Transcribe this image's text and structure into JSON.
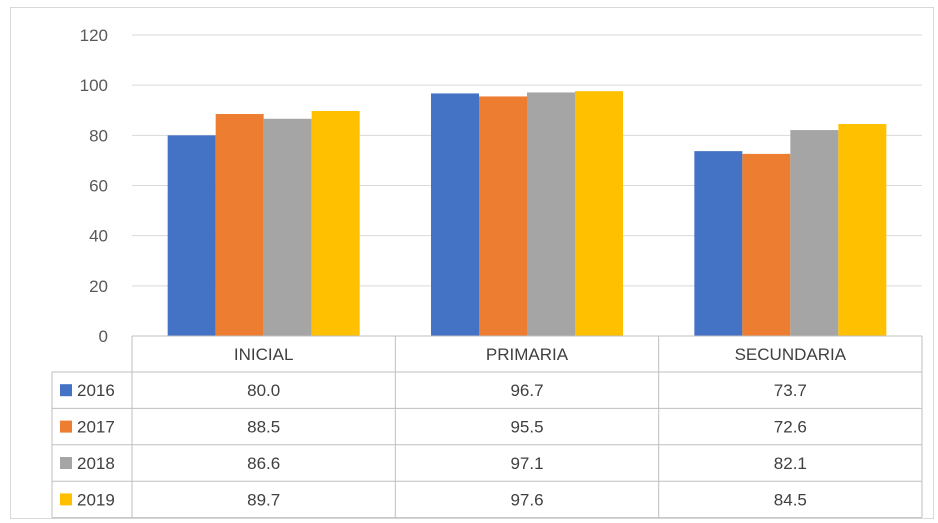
{
  "chart_data": {
    "type": "bar",
    "categories": [
      "INICIAL",
      "PRIMARIA",
      "SECUNDARIA"
    ],
    "series": [
      {
        "name": "2016",
        "color": "#4472C4",
        "values": [
          80.0,
          96.7,
          73.7
        ],
        "labels": [
          "80.0",
          "96.7",
          "73.7"
        ]
      },
      {
        "name": "2017",
        "color": "#ED7D31",
        "values": [
          88.5,
          95.5,
          72.6
        ],
        "labels": [
          "88.5",
          "95.5",
          "72.6"
        ]
      },
      {
        "name": "2018",
        "color": "#A5A5A5",
        "values": [
          86.6,
          97.1,
          82.1
        ],
        "labels": [
          "86.6",
          "97.1",
          "82.1"
        ]
      },
      {
        "name": "2019",
        "color": "#FFC000",
        "values": [
          89.7,
          97.6,
          84.5
        ],
        "labels": [
          "89.7",
          "97.6",
          "84.5"
        ]
      }
    ],
    "ylim": [
      0,
      120
    ],
    "yticks": [
      "0",
      "20",
      "40",
      "60",
      "80",
      "100",
      "120"
    ],
    "grid": true,
    "legend": "data-table"
  }
}
